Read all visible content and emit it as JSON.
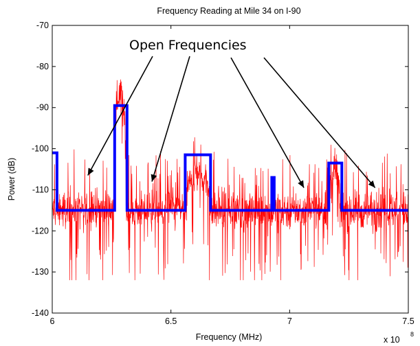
{
  "chart_data": {
    "type": "line",
    "title": "Frequency Reading at Mile 34 on I-90",
    "xlabel": "Frequency (MHz)",
    "ylabel": "Power (dB)",
    "x_exponent_label": "x 10",
    "x_exponent_power": "8",
    "xlim": [
      6,
      7.5
    ],
    "ylim": [
      -140,
      -70
    ],
    "x_ticks": [
      6,
      6.5,
      7,
      7.5
    ],
    "x_tick_labels": [
      "6",
      "6.5",
      "7",
      "7.5"
    ],
    "y_ticks": [
      -140,
      -130,
      -120,
      -110,
      -100,
      -90,
      -80,
      -70
    ],
    "y_tick_labels": [
      "-140",
      "-130",
      "-120",
      "-110",
      "-100",
      "-90",
      "-80",
      "-70"
    ],
    "grid": false,
    "series": [
      {
        "color": "#ff0000",
        "style": "noisy spectrum trace",
        "noise_floor": -115,
        "peaks": [
          {
            "x_start": 6.26,
            "x_end": 6.31,
            "level": -86
          },
          {
            "x_start": 6.57,
            "x_end": 6.66,
            "level": -106
          },
          {
            "x_start": 7.17,
            "x_end": 7.21,
            "level": -106
          }
        ]
      },
      {
        "color": "#0000ff",
        "style": "threshold step line",
        "x": [
          6.0,
          6.02,
          6.02,
          6.263,
          6.263,
          6.315,
          6.315,
          6.56,
          6.56,
          6.667,
          6.667,
          6.925,
          6.925,
          6.935,
          6.935,
          7.165,
          7.165,
          7.22,
          7.22,
          7.5
        ],
        "y": [
          -101,
          -101,
          -115,
          -115,
          -89.5,
          -89.5,
          -115,
          -115,
          -101.5,
          -101.5,
          -115,
          -115,
          -107,
          -107,
          -115,
          -115,
          -103.5,
          -103.5,
          -115,
          -115
        ]
      }
    ],
    "annotations": [
      {
        "text": "Open Frequencies",
        "arrow_targets": [
          {
            "x": 6.15,
            "y": -106.5
          },
          {
            "x": 6.42,
            "y": -108
          },
          {
            "x": 7.06,
            "y": -109.5
          },
          {
            "x": 7.36,
            "y": -109.5
          }
        ]
      }
    ]
  }
}
